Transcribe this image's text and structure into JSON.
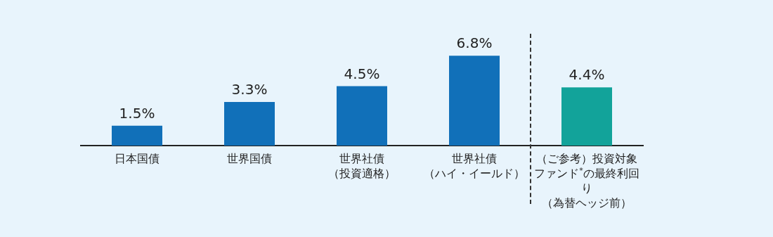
{
  "chart_data": {
    "type": "bar",
    "categories": [
      "日本国債",
      "世界国債",
      "世界社債（投資適格）",
      "世界社債（ハイ・イールド）",
      "（ご参考）投資対象ファンド$^{*}$の最終利回り（為替ヘッジ前）"
    ],
    "values": [
      1.5,
      3.3,
      4.5,
      6.8,
      4.4
    ],
    "colors": [
      "#1170b9",
      "#1170b9",
      "#1170b9",
      "#1170b9",
      "#12a39a"
    ],
    "value_labels": [
      "1.5%",
      "3.3%",
      "4.5%",
      "6.8%",
      "4.4%"
    ],
    "grid": false,
    "legend": false
  }
}
